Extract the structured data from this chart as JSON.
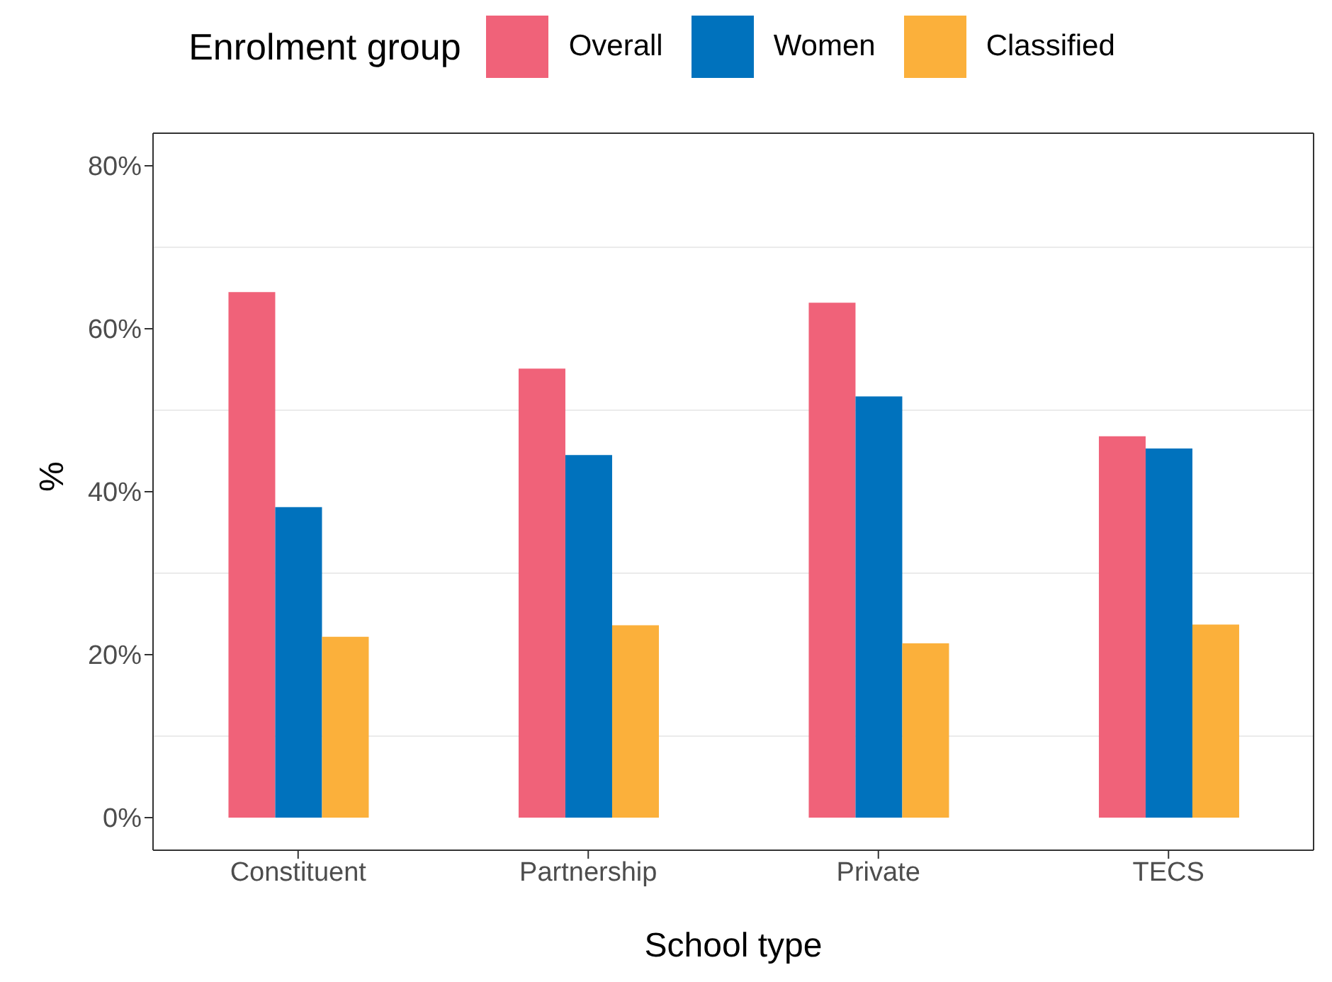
{
  "chart_data": {
    "type": "bar",
    "xlabel": "School type",
    "ylabel": "%",
    "legend_title": "Enrolment group",
    "categories": [
      "Constituent",
      "Partnership",
      "Private",
      "TECS"
    ],
    "series": [
      {
        "name": "Overall",
        "color": "#f06279",
        "values": [
          64.5,
          55.1,
          63.2,
          46.8
        ]
      },
      {
        "name": "Women",
        "color": "#0072bd",
        "values": [
          38.1,
          44.5,
          51.7,
          45.3
        ]
      },
      {
        "name": "Classified",
        "color": "#fbb03b",
        "values": [
          22.2,
          23.6,
          21.4,
          23.7
        ]
      }
    ],
    "ylim": [
      -4,
      84
    ],
    "yticks": [
      {
        "value": 0,
        "label": "0%"
      },
      {
        "value": 20,
        "label": "20%"
      },
      {
        "value": 40,
        "label": "40%"
      },
      {
        "value": 60,
        "label": "60%"
      },
      {
        "value": 80,
        "label": "80%"
      }
    ],
    "grid": "y",
    "legend": "top"
  }
}
